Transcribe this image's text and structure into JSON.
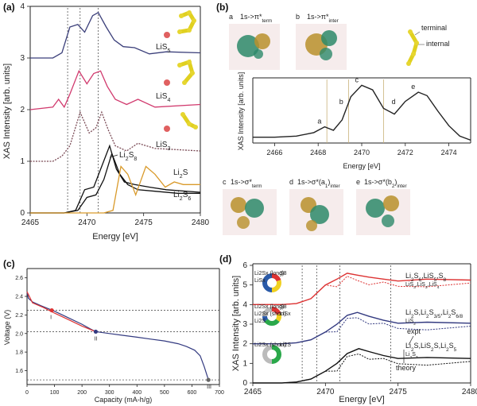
{
  "panels": {
    "a": {
      "label": "(a)"
    },
    "b": {
      "label": "(b)"
    },
    "c": {
      "label": "(c)"
    },
    "d": {
      "label": "(d)"
    }
  },
  "chart_data": [
    {
      "id": "a",
      "type": "line",
      "xlabel": "Energy [eV]",
      "ylabel": "XAS Intensity [arb. units]",
      "xlim": [
        2465,
        2480
      ],
      "ylim": [
        0,
        4
      ],
      "xticks": [
        "2465",
        "2470",
        "2475",
        "2480"
      ],
      "yticks": [
        "0",
        "1",
        "2",
        "3",
        "4"
      ],
      "grid": false,
      "vlines": [
        2468.3,
        2469.4,
        2471.0
      ],
      "series": [
        {
          "name": "LiS5",
          "label_main": "LiS",
          "label_sub": "5",
          "color": "#3b3f7a",
          "style": "solid",
          "x": [
            2465,
            2467,
            2467.8,
            2468.5,
            2469.2,
            2469.8,
            2470.5,
            2471.0,
            2471.7,
            2472.4,
            2473.2,
            2474.2,
            2475.5,
            2477,
            2480
          ],
          "y": [
            3.0,
            3.0,
            3.1,
            3.6,
            3.65,
            3.5,
            3.82,
            3.88,
            3.6,
            3.35,
            3.22,
            3.2,
            3.08,
            3.12,
            3.1
          ]
        },
        {
          "name": "LiS4",
          "label_main": "LiS",
          "label_sub": "4",
          "color": "#d13a6e",
          "style": "solid",
          "x": [
            2465,
            2467,
            2467.5,
            2468,
            2468.5,
            2469.3,
            2470.0,
            2470.6,
            2471.2,
            2471.8,
            2472.5,
            2473.5,
            2474.5,
            2476,
            2480
          ],
          "y": [
            2.0,
            2.05,
            2.2,
            2.05,
            2.3,
            2.75,
            2.5,
            2.7,
            2.75,
            2.45,
            2.2,
            2.1,
            2.2,
            2.05,
            2.1
          ]
        },
        {
          "name": "LiS3",
          "label_main": "LiS",
          "label_sub": "3",
          "color": "#7a4a55",
          "style": "dotted",
          "x": [
            2465,
            2467,
            2467.8,
            2468.5,
            2469.4,
            2470.2,
            2470.8,
            2471.3,
            2471.9,
            2472.5,
            2473.5,
            2474.5,
            2476,
            2480
          ],
          "y": [
            1.0,
            1.0,
            1.1,
            1.3,
            1.95,
            1.55,
            1.65,
            1.95,
            1.6,
            1.3,
            1.2,
            1.35,
            1.25,
            1.2
          ]
        },
        {
          "name": "Li2S8",
          "label_main": "Li",
          "label_sub": "2",
          "label_tail": "S",
          "label_sub2": "8",
          "color": "#111111",
          "style": "solid",
          "x": [
            2465,
            2468,
            2469,
            2469.8,
            2470.6,
            2471.3,
            2472.0,
            2472.6,
            2473.3,
            2474.2,
            2475.5,
            2477,
            2480
          ],
          "y": [
            0,
            0,
            0.05,
            0.45,
            0.5,
            0.9,
            1.3,
            0.85,
            0.6,
            0.55,
            0.5,
            0.45,
            0.4
          ]
        },
        {
          "name": "Li2S6",
          "label_main": "Li",
          "label_sub": "2",
          "label_tail": "S",
          "label_sub2": "6",
          "color": "#111111",
          "style": "solid",
          "x": [
            2465,
            2468,
            2469.2,
            2470.0,
            2470.8,
            2471.5,
            2472.2,
            2472.9,
            2473.6,
            2474.5,
            2476,
            2478,
            2480
          ],
          "y": [
            0,
            0,
            0.05,
            0.3,
            0.35,
            0.65,
            1.15,
            0.75,
            0.55,
            0.45,
            0.42,
            0.38,
            0.38
          ]
        },
        {
          "name": "Li2S",
          "label_main": "Li",
          "label_sub": "2",
          "label_tail": "S",
          "color": "#d99a2b",
          "style": "solid",
          "x": [
            2465,
            2471.5,
            2472.3,
            2473.0,
            2473.6,
            2474.3,
            2475.2,
            2476.0,
            2476.9,
            2477.7,
            2478.5,
            2480
          ],
          "y": [
            0,
            0,
            0.05,
            0.9,
            0.75,
            0.35,
            0.9,
            0.75,
            0.5,
            0.6,
            0.55,
            0.55
          ]
        }
      ]
    },
    {
      "id": "b",
      "type": "line",
      "xlabel": "Energy [eV]",
      "ylabel": "XAS Intensity [arb. units]",
      "xlim": [
        2465,
        2475
      ],
      "xticks": [
        "2466",
        "2468",
        "2470",
        "2472",
        "2474"
      ],
      "vlines": [
        2468.4,
        2469.4,
        2471.0
      ],
      "peaks": [
        {
          "label": "a",
          "x": 2468.3,
          "y": 0.28
        },
        {
          "label": "b",
          "x": 2469.3,
          "y": 0.62
        },
        {
          "label": "c",
          "x": 2470.0,
          "y": 1.0
        },
        {
          "label": "d",
          "x": 2471.7,
          "y": 0.62
        },
        {
          "label": "e",
          "x": 2472.6,
          "y": 0.88
        }
      ],
      "series": [
        {
          "name": "",
          "color": "#222222",
          "x": [
            2465,
            2466,
            2467,
            2467.8,
            2468.3,
            2468.7,
            2469.1,
            2469.5,
            2470.0,
            2470.5,
            2471.0,
            2471.5,
            2472.0,
            2472.6,
            2473.0,
            2473.5,
            2474,
            2474.5,
            2475
          ],
          "y": [
            0.1,
            0.1,
            0.12,
            0.18,
            0.28,
            0.22,
            0.4,
            0.8,
            1.0,
            0.92,
            0.6,
            0.5,
            0.72,
            0.88,
            0.82,
            0.55,
            0.3,
            0.12,
            0.05
          ]
        }
      ],
      "transitions_top": [
        {
          "letter": "a",
          "text": "1s->π*",
          "sub": "term"
        },
        {
          "letter": "b",
          "text": "1s->π*",
          "sub": "inter"
        }
      ],
      "transitions_bottom": [
        {
          "letter": "c",
          "text": "1s->σ*",
          "sub": "term"
        },
        {
          "letter": "d",
          "text": "1s->σ*(a",
          "sub": "1",
          "tail": ")",
          "sub2": "inter"
        },
        {
          "letter": "e",
          "text": "1s->σ*(b",
          "sub": "2",
          "tail": ")",
          "sub2": "inter"
        }
      ],
      "legend_terms": [
        "terminal",
        "internal"
      ]
    },
    {
      "id": "c",
      "type": "line",
      "xlabel": "Capacity (mA-h/g)",
      "ylabel": "Voltage (V)",
      "xlim": [
        0,
        700
      ],
      "ylim": [
        1.45,
        2.7
      ],
      "xticks": [
        "0",
        "100",
        "200",
        "300",
        "400",
        "500",
        "600",
        "700"
      ],
      "yticks": [
        "1.6",
        "1.8",
        "2.0",
        "2.2",
        "2.4",
        "2.6"
      ],
      "hlines": [
        2.25,
        2.02,
        1.5
      ],
      "markers": [
        {
          "label": "I",
          "x": 90,
          "y": 2.25,
          "color": "#d33"
        },
        {
          "label": "II",
          "x": 250,
          "y": 2.02,
          "color": "#333a80"
        },
        {
          "label": "III",
          "x": 660,
          "y": 1.5,
          "color": "#666"
        }
      ],
      "series": [
        {
          "name": "",
          "color": "#333a80",
          "x": [
            0,
            5,
            20,
            50,
            100,
            150,
            200,
            230,
            250,
            300,
            350,
            400,
            450,
            500,
            550,
            580,
            610,
            630,
            645,
            660
          ],
          "y": [
            2.45,
            2.38,
            2.34,
            2.3,
            2.24,
            2.17,
            2.1,
            2.05,
            2.02,
            2.0,
            1.98,
            1.96,
            1.94,
            1.92,
            1.89,
            1.86,
            1.82,
            1.76,
            1.64,
            1.5
          ]
        },
        {
          "name": "",
          "color": "#d33",
          "x": [
            0,
            20,
            60,
            100,
            150,
            200,
            250
          ],
          "y": [
            2.45,
            2.33,
            2.28,
            2.22,
            2.15,
            2.08,
            2.02
          ]
        }
      ]
    },
    {
      "id": "d",
      "type": "line",
      "xlabel": "Energy [eV]",
      "ylabel": "XAS Intensity [arb. units]",
      "xlim": [
        2465,
        2480
      ],
      "ylim": [
        0,
        6
      ],
      "xticks": [
        "2465",
        "2470",
        "2475",
        "2480"
      ],
      "yticks": [
        "0",
        "1",
        "2",
        "3",
        "4",
        "5",
        "6"
      ],
      "vlines": [
        2468.4,
        2469.4,
        2471.0,
        2474.5
      ],
      "annotations": [
        "expt",
        "theory"
      ],
      "series": [
        {
          "name": "I expt",
          "color": "#d33",
          "x": [
            2465,
            2467,
            2468,
            2469,
            2470,
            2470.8,
            2471.5,
            2472.2,
            2473,
            2474,
            2475,
            2477,
            2480
          ],
          "y": [
            4.0,
            4.0,
            4.05,
            4.3,
            5.0,
            5.3,
            5.6,
            5.5,
            5.4,
            5.3,
            5.2,
            5.3,
            5.25
          ]
        },
        {
          "name": "II expt",
          "color": "#333a80",
          "x": [
            2465,
            2467,
            2468,
            2469,
            2470,
            2470.8,
            2471.5,
            2472.2,
            2473,
            2474,
            2475,
            2477,
            2480
          ],
          "y": [
            2.0,
            2.0,
            2.05,
            2.2,
            2.6,
            3.0,
            3.45,
            3.6,
            3.4,
            3.2,
            3.05,
            3.1,
            3.05
          ]
        },
        {
          "name": "III expt",
          "color": "#111111",
          "x": [
            2465,
            2467,
            2468,
            2469,
            2470,
            2470.8,
            2471.5,
            2472.3,
            2473,
            2474,
            2475,
            2477,
            2480
          ],
          "y": [
            0,
            0,
            0.05,
            0.2,
            0.6,
            1.0,
            1.5,
            1.75,
            1.6,
            1.4,
            1.25,
            1.3,
            1.25
          ]
        }
      ],
      "legends": [
        {
          "main": "Li2S6,LiS5,S8",
          "main_parts": [
            [
              "Li",
              ""
            ],
            [
              "2",
              "sub"
            ],
            [
              "S",
              ""
            ],
            [
              "6",
              "sub"
            ],
            [
              ",LiS",
              ""
            ],
            [
              "5",
              "sub"
            ],
            [
              ",S",
              ""
            ],
            [
              "8",
              "sub"
            ]
          ],
          "sub_parts": [
            [
              "LiS",
              ""
            ],
            [
              "3",
              "sub"
            ],
            [
              ",LiS",
              ""
            ],
            [
              "3",
              "sub"
            ],
            [
              ",LiS",
              ""
            ],
            [
              "4",
              "sub"
            ]
          ],
          "color": "#d33"
        },
        {
          "main_parts": [
            [
              "Li",
              ""
            ],
            [
              "2",
              "sub"
            ],
            [
              "S,Li",
              ""
            ],
            [
              "2",
              "sub"
            ],
            [
              "S",
              ""
            ],
            [
              "3/5",
              "sub"
            ],
            [
              ",Li",
              ""
            ],
            [
              "2",
              "sub"
            ],
            [
              "S",
              ""
            ],
            [
              "6/8",
              "sub"
            ]
          ],
          "sub_parts": [
            [
              "LiS",
              ""
            ],
            [
              "2",
              "sub"
            ]
          ],
          "color": "#d33"
        },
        {
          "main_parts": [
            [
              "Li",
              ""
            ],
            [
              "2",
              "sub"
            ],
            [
              "S,LiS",
              ""
            ],
            [
              "2",
              "sub"
            ],
            [
              "S,Li",
              ""
            ],
            [
              "2",
              "sub"
            ],
            [
              "S",
              ""
            ],
            [
              "5",
              "sub"
            ]
          ],
          "sub_parts": [
            [
              "Li",
              ""
            ],
            [
              "2",
              "sub"
            ],
            [
              "S",
              ""
            ],
            [
              "3",
              "sub"
            ]
          ],
          "color": "#d33"
        }
      ],
      "donuts": [
        {
          "labels": [
            "Li2Sx (long)",
            "S8",
            "LiSx"
          ]
        },
        {
          "labels": [
            "Li2Sx (long)",
            "S8",
            "Li2Sx (short)",
            "LiSx",
            "Li2S"
          ]
        },
        {
          "labels": [
            "Li2Sx (short)",
            "Li2S"
          ]
        }
      ]
    }
  ]
}
